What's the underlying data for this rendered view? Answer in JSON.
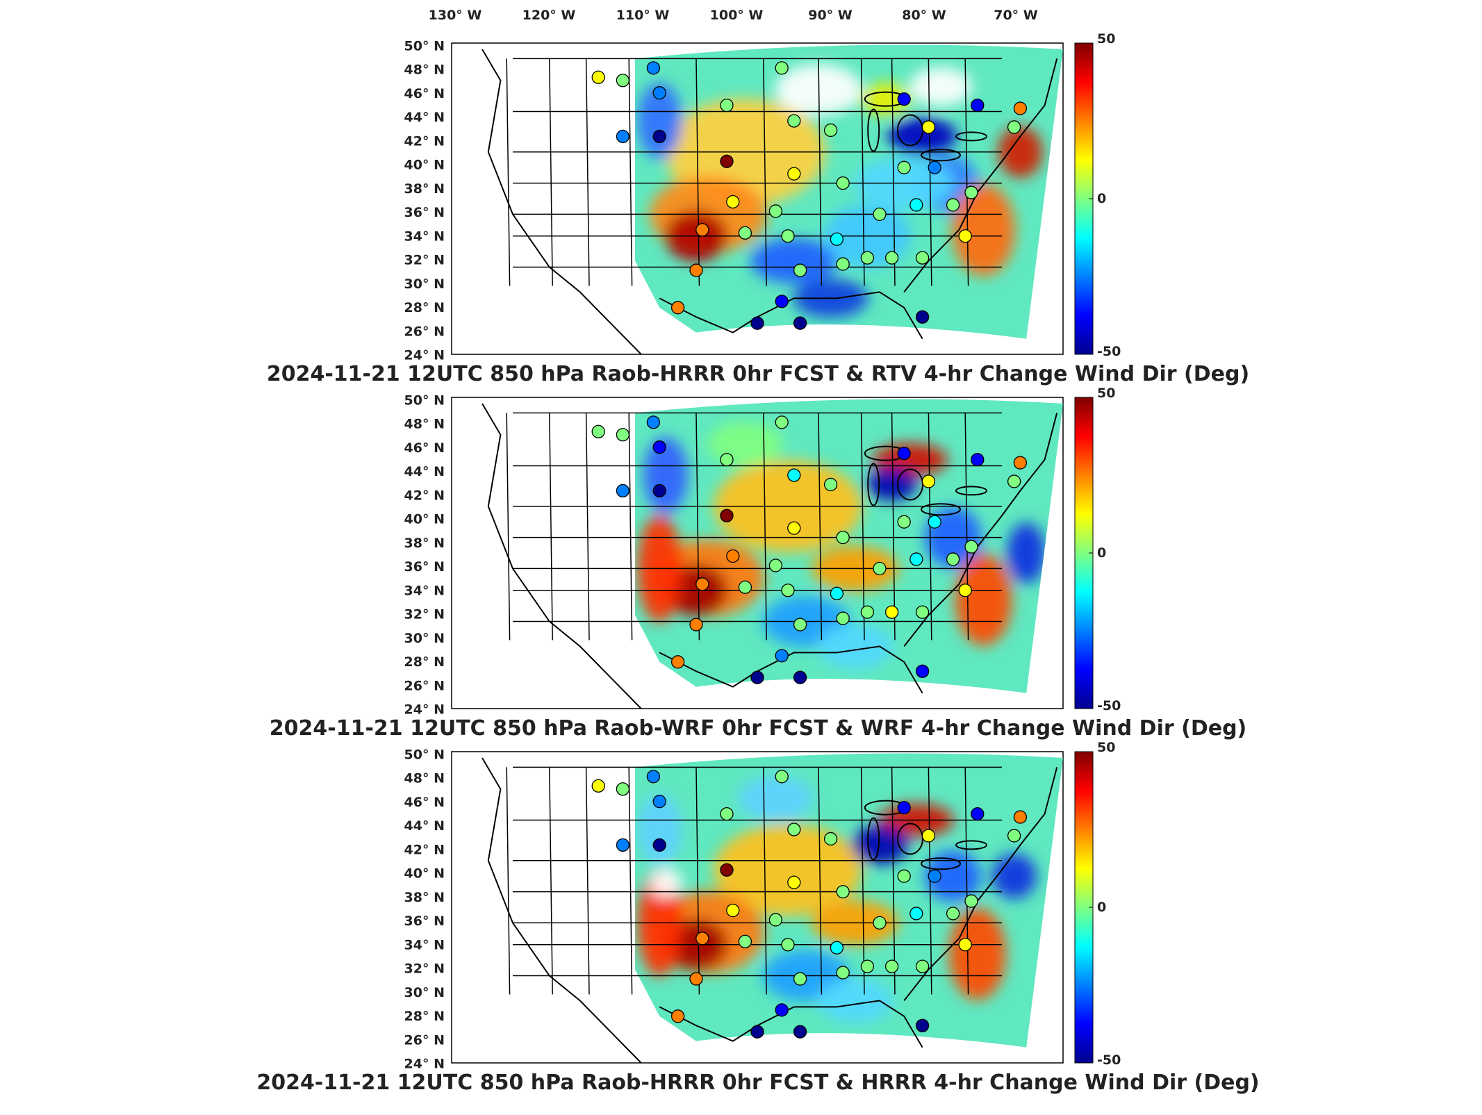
{
  "figure": {
    "lon_labels": [
      "130° W",
      "120° W",
      "110° W",
      "100° W",
      "90° W",
      "80° W",
      "70° W"
    ],
    "lat_labels": [
      "50° N",
      "48° N",
      "46° N",
      "44° N",
      "42° N",
      "40° N",
      "38° N",
      "36° N",
      "34° N",
      "32° N",
      "30° N",
      "28° N",
      "26° N",
      "24° N"
    ],
    "colorbar": {
      "min": -50,
      "max": 50,
      "tick_labels": [
        "50",
        "0",
        "-50"
      ],
      "colormap": "jet",
      "colors": [
        "#00008f",
        "#0000ff",
        "#0080ff",
        "#00ffff",
        "#80ff80",
        "#ffff00",
        "#ff8000",
        "#ff0000",
        "#800000"
      ]
    },
    "basemap": {
      "lines_color": "#000000",
      "no_data_color": "#ffffff"
    }
  },
  "panels": [
    {
      "title": "2024-11-21 12UTC 850 hPa Raob-HRRR 0hr FCST & RTV 4-hr Change Wind Dir (Deg)",
      "model": "RTV"
    },
    {
      "title": "2024-11-21 12UTC 850 hPa Raob-WRF 0hr FCST & WRF 4-hr Change Wind Dir (Deg)",
      "model": "WRF"
    },
    {
      "title": "2024-11-21 12UTC 850 hPa Raob-HRRR 0hr FCST & HRRR 4-hr Change Wind Dir (Deg)",
      "model": "HRRR"
    }
  ]
}
